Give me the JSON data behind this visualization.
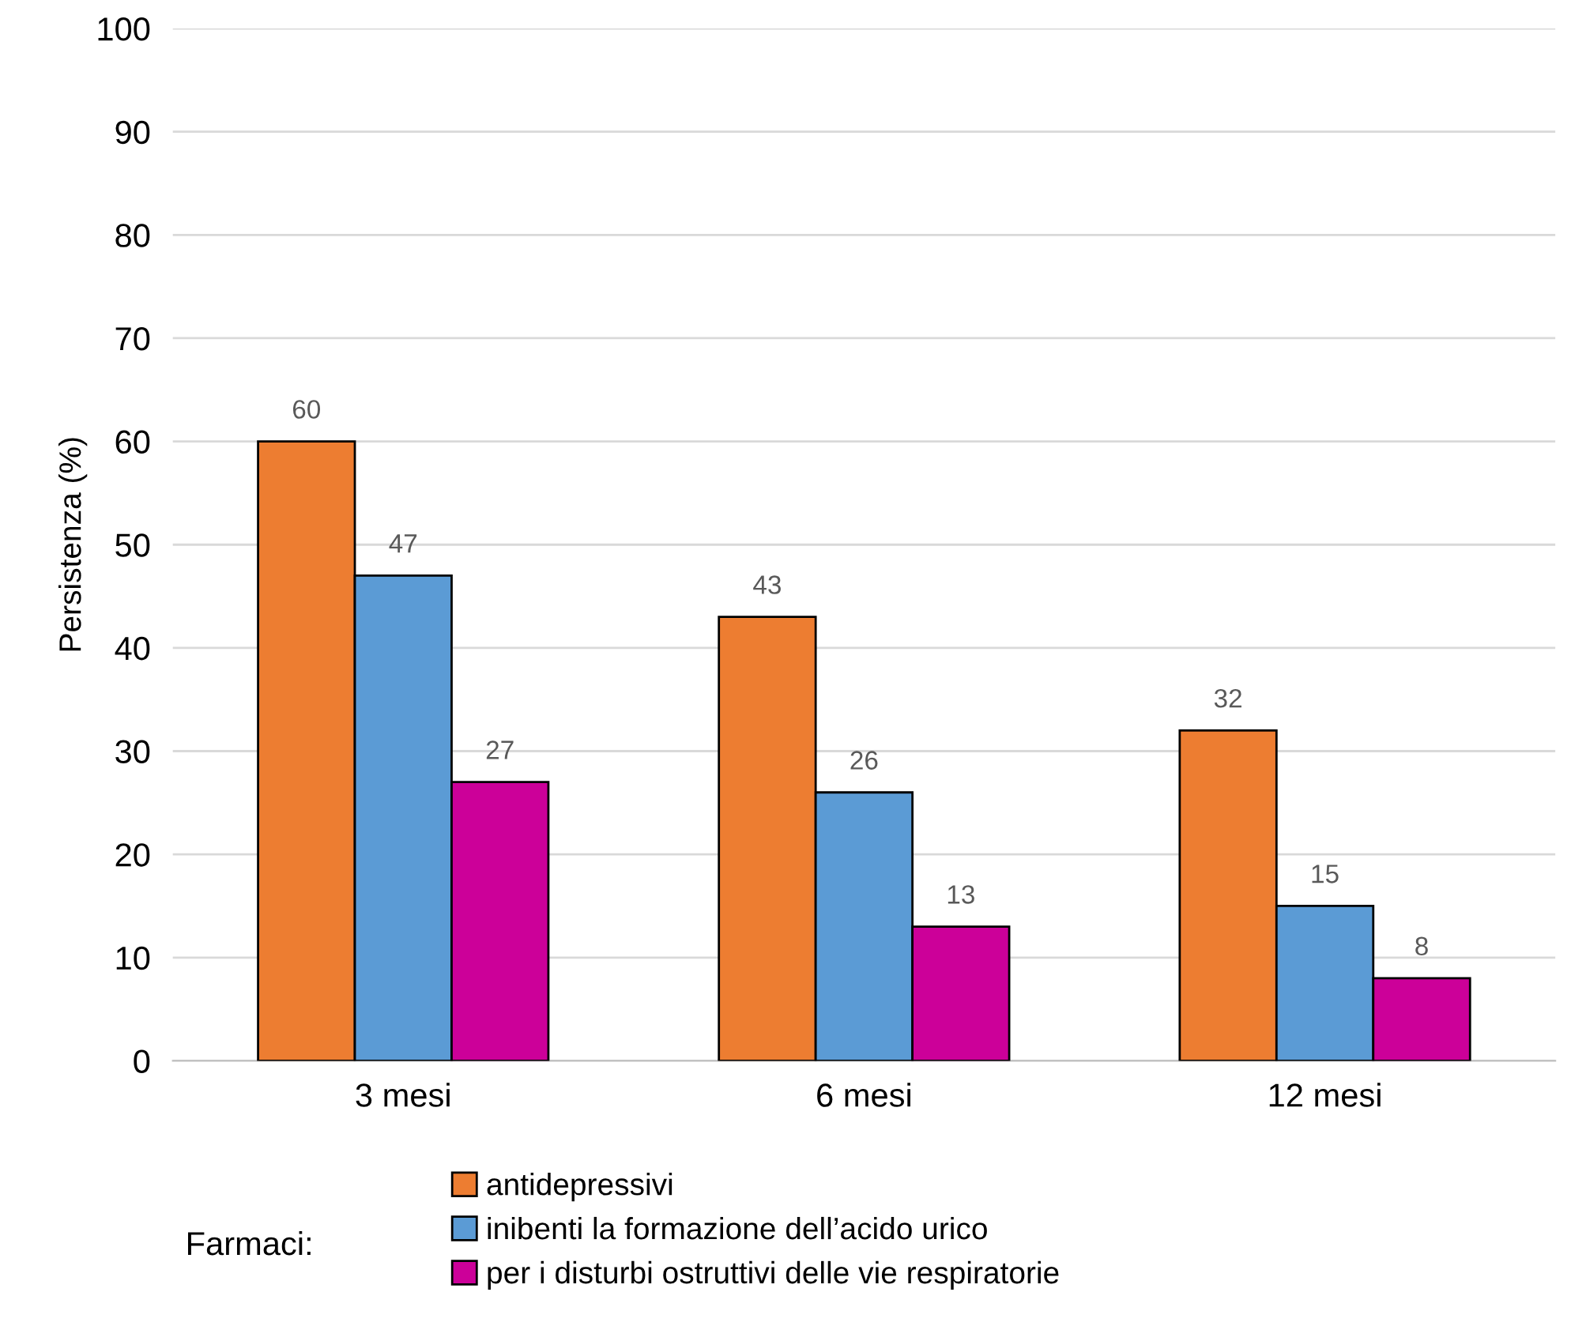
{
  "chart_data": {
    "type": "bar",
    "ylabel": "Persistenza (%)",
    "legend_title": "Farmaci:",
    "categories": [
      "3 mesi",
      "6 mesi",
      "12 mesi"
    ],
    "series": [
      {
        "name": "antidepressivi",
        "color": "#ed7d31",
        "values": [
          60,
          43,
          32
        ]
      },
      {
        "name": "inibenti la formazione dell’acido urico",
        "color": "#5b9bd5",
        "values": [
          47,
          26,
          15
        ]
      },
      {
        "name": "per i disturbi ostruttivi delle vie respiratorie",
        "color": "#cc0099",
        "values": [
          27,
          13,
          8
        ]
      }
    ],
    "ylim": [
      0,
      100
    ],
    "yticks": [
      0,
      10,
      20,
      30,
      40,
      50,
      60,
      70,
      80,
      90,
      100
    ],
    "grid": "y",
    "legend": "bottom",
    "data_labels": true
  }
}
